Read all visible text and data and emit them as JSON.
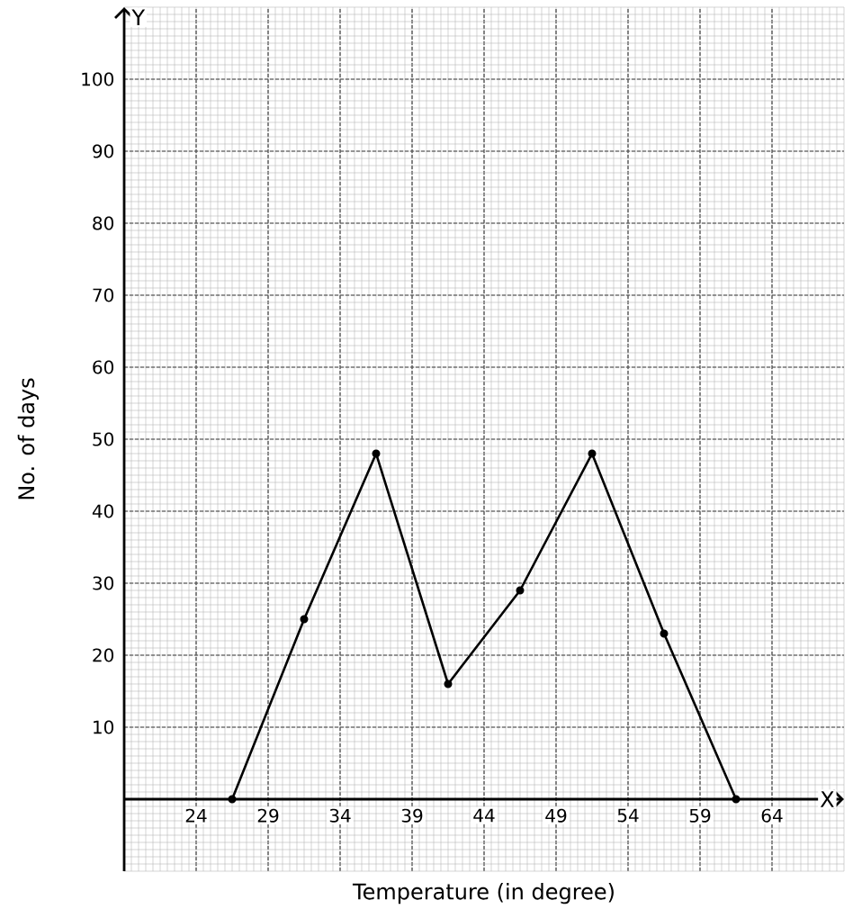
{
  "chart_data": {
    "type": "line",
    "xlabel": "Temperature (in degree)",
    "ylabel": "No. of days",
    "annotations": [
      "X",
      "Y"
    ],
    "x": [
      26.5,
      31.5,
      36.5,
      41.5,
      46.5,
      51.5,
      56.5,
      61.5
    ],
    "values": [
      0,
      25,
      48,
      16,
      29,
      48,
      23,
      0
    ],
    "color": "#000000",
    "xlim": [
      19,
      69
    ],
    "ylim": [
      -10,
      110
    ],
    "xticks": [
      24,
      29,
      34,
      39,
      44,
      49,
      54,
      59,
      64
    ],
    "yticks": [
      10,
      20,
      30,
      40,
      50,
      60,
      70,
      80,
      90,
      100
    ],
    "grid": true,
    "marker": "circle",
    "line_style": "solid"
  }
}
